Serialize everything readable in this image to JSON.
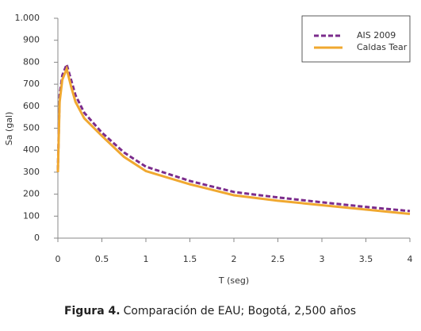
{
  "chart_data": {
    "type": "line",
    "xlabel": "T (seg)",
    "ylabel": "Sa (gal)",
    "x": [
      0,
      0.02,
      0.05,
      0.1,
      0.15,
      0.2,
      0.3,
      0.5,
      0.75,
      1,
      1.5,
      2,
      2.5,
      3,
      3.5,
      4
    ],
    "series": [
      {
        "name": "AIS 2009",
        "color": "#7b2c8c",
        "dashed": true,
        "values": [
          310,
          650,
          740,
          790,
          720,
          650,
          570,
          480,
          390,
          325,
          260,
          210,
          185,
          163,
          142,
          123
        ]
      },
      {
        "name": "Caldas Tear",
        "color": "#f0a830",
        "dashed": false,
        "values": [
          300,
          620,
          720,
          770,
          690,
          620,
          545,
          465,
          370,
          305,
          245,
          195,
          170,
          150,
          130,
          110
        ]
      }
    ],
    "xlim": [
      0,
      4
    ],
    "xticks": [
      0,
      0.5,
      1,
      1.5,
      2,
      2.5,
      3,
      3.5,
      4
    ],
    "ylim": [
      0,
      1000
    ],
    "yticks": [
      0,
      100,
      200,
      300,
      400,
      500,
      600,
      700,
      800,
      900,
      {
        "value": 1000,
        "label": "1.000"
      }
    ],
    "grid": false,
    "legend": "top-right"
  },
  "caption": {
    "label": "Figura 4.",
    "text": "Comparación de EAU; Bogotá, 2,500 años"
  }
}
